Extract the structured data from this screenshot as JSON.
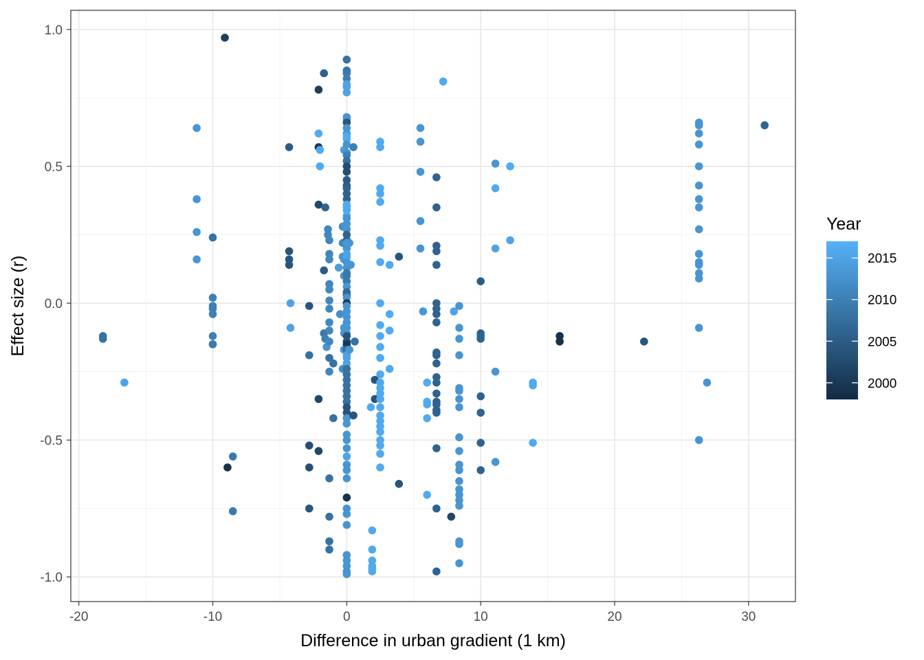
{
  "chart_data": {
    "type": "scatter",
    "xlabel": "Difference in urban gradient (1 km)",
    "ylabel": "Effect size (r)",
    "xlim": [
      -20.6,
      33.5
    ],
    "ylim": [
      -1.09,
      1.07
    ],
    "x_ticks": [
      -20,
      -10,
      0,
      10,
      20,
      30
    ],
    "y_ticks": [
      -1.0,
      -0.5,
      0.0,
      0.5,
      1.0
    ],
    "x_tick_labels": [
      "-20",
      "-10",
      "0",
      "10",
      "20",
      "30"
    ],
    "y_tick_labels": [
      "-1.0",
      "-0.5",
      "0.0",
      "0.5",
      "1.0"
    ],
    "grid": true,
    "legend": {
      "title": "Year",
      "placement": "right",
      "ticks": [
        2015,
        2010,
        2005,
        2000
      ],
      "tick_labels": [
        "2015",
        "2010",
        "2005",
        "2000"
      ],
      "range": [
        1998,
        2017
      ],
      "color_low": "#132b43",
      "color_high": "#56b1f7"
    },
    "points": [
      [
        -9.1,
        0.97,
        2001
      ],
      [
        -18.2,
        -0.12,
        2008
      ],
      [
        -18.2,
        -0.13,
        2008
      ],
      [
        -16.6,
        -0.29,
        2015
      ],
      [
        -11.2,
        0.64,
        2013
      ],
      [
        -11.2,
        0.38,
        2013
      ],
      [
        -11.2,
        0.26,
        2013
      ],
      [
        -11.2,
        0.16,
        2013
      ],
      [
        -10.0,
        0.24,
        2008
      ],
      [
        -10.0,
        0.02,
        2010
      ],
      [
        -10.0,
        -0.01,
        2010
      ],
      [
        -10.0,
        -0.02,
        2010
      ],
      [
        -10.0,
        -0.04,
        2010
      ],
      [
        -10.0,
        -0.12,
        2010
      ],
      [
        -10.0,
        -0.15,
        2010
      ],
      [
        -10.0,
        -0.15,
        2009
      ],
      [
        -8.9,
        -0.6,
        1999
      ],
      [
        -8.5,
        -0.56,
        2009
      ],
      [
        -8.5,
        -0.76,
        2009
      ],
      [
        -4.3,
        0.57,
        2005
      ],
      [
        -4.3,
        0.19,
        2004
      ],
      [
        -4.3,
        0.16,
        2004
      ],
      [
        -4.3,
        0.14,
        2004
      ],
      [
        -4.2,
        0.0,
        2015
      ],
      [
        -4.2,
        -0.09,
        2015
      ],
      [
        -2.8,
        -0.01,
        2004
      ],
      [
        -2.8,
        -0.19,
        2008
      ],
      [
        -2.8,
        -0.52,
        2003
      ],
      [
        -2.8,
        -0.6,
        2003
      ],
      [
        -2.8,
        -0.75,
        2004
      ],
      [
        -2.1,
        0.78,
        2001
      ],
      [
        -2.1,
        0.57,
        2000
      ],
      [
        -2.1,
        0.62,
        2016
      ],
      [
        -2.0,
        0.56,
        2016
      ],
      [
        -2.0,
        0.5,
        2016
      ],
      [
        -2.1,
        0.36,
        2002
      ],
      [
        -2.1,
        -0.35,
        2002
      ],
      [
        -2.1,
        -0.54,
        2002
      ],
      [
        -1.7,
        0.84,
        2006
      ],
      [
        -1.6,
        0.35,
        2006
      ],
      [
        -1.7,
        0.12,
        2005
      ],
      [
        -1.7,
        -0.11,
        2009
      ],
      [
        -1.6,
        -0.13,
        2010
      ],
      [
        -1.5,
        -0.16,
        2013
      ],
      [
        -1.4,
        0.27,
        2011
      ],
      [
        -1.4,
        0.25,
        2011
      ],
      [
        -1.3,
        0.23,
        2011
      ],
      [
        -1.3,
        0.18,
        2011
      ],
      [
        -1.3,
        0.16,
        2011
      ],
      [
        -1.3,
        0.07,
        2011
      ],
      [
        -1.3,
        0.05,
        2011
      ],
      [
        -1.3,
        0.01,
        2011
      ],
      [
        -1.3,
        -0.02,
        2011
      ],
      [
        -1.3,
        -0.07,
        2011
      ],
      [
        -1.3,
        -0.1,
        2011
      ],
      [
        -1.3,
        -0.14,
        2011
      ],
      [
        -1.3,
        -0.2,
        2008
      ],
      [
        -1.3,
        -0.25,
        2011
      ],
      [
        -1.3,
        -0.64,
        2008
      ],
      [
        -1.3,
        -0.78,
        2008
      ],
      [
        -1.3,
        -0.87,
        2008
      ],
      [
        -1.3,
        -0.9,
        2008
      ],
      [
        -1.0,
        -0.42,
        2008
      ],
      [
        -1.0,
        -0.22,
        2008
      ],
      [
        -0.6,
        0.13,
        2014
      ],
      [
        -0.5,
        -0.04,
        2012
      ],
      [
        -0.3,
        0.28,
        2012
      ],
      [
        -0.3,
        0.22,
        2011
      ],
      [
        -0.3,
        0.17,
        2013
      ],
      [
        -0.2,
        0.16,
        2013
      ],
      [
        -0.2,
        0.1,
        2013
      ],
      [
        -0.2,
        0.56,
        2014
      ],
      [
        -0.2,
        -0.09,
        2013
      ],
      [
        -0.2,
        -0.11,
        2013
      ],
      [
        -0.2,
        -0.17,
        2013
      ],
      [
        -0.3,
        -0.24,
        2012
      ],
      [
        0,
        0.89,
        2008
      ],
      [
        0,
        0.85,
        2008
      ],
      [
        0,
        0.84,
        2009
      ],
      [
        0,
        0.82,
        2010
      ],
      [
        0,
        0.8,
        2015
      ],
      [
        0,
        0.79,
        2015
      ],
      [
        0,
        0.77,
        2015
      ],
      [
        0,
        0.68,
        2013
      ],
      [
        0,
        0.67,
        2013
      ],
      [
        0,
        0.66,
        2004
      ],
      [
        0,
        0.64,
        2013
      ],
      [
        0,
        0.62,
        2013
      ],
      [
        0,
        0.61,
        2016
      ],
      [
        0,
        0.6,
        2016
      ],
      [
        0,
        0.58,
        2013
      ],
      [
        0,
        0.55,
        2013
      ],
      [
        0,
        0.54,
        2010
      ],
      [
        0,
        0.52,
        2008
      ],
      [
        0,
        0.5,
        2003
      ],
      [
        0,
        0.48,
        2003
      ],
      [
        0,
        0.45,
        2005
      ],
      [
        0,
        0.43,
        2005
      ],
      [
        0,
        0.42,
        2006
      ],
      [
        0,
        0.4,
        2006
      ],
      [
        0,
        0.38,
        2006
      ],
      [
        0,
        0.36,
        2016
      ],
      [
        0,
        0.35,
        2016
      ],
      [
        0,
        0.34,
        2016
      ],
      [
        0,
        0.32,
        2016
      ],
      [
        0,
        0.31,
        2013
      ],
      [
        0,
        0.29,
        2013
      ],
      [
        0,
        0.27,
        2013
      ],
      [
        0,
        0.25,
        2006
      ],
      [
        0,
        0.23,
        2006
      ],
      [
        0,
        0.22,
        2013
      ],
      [
        0,
        0.2,
        2013
      ],
      [
        0,
        0.18,
        2015
      ],
      [
        0,
        0.17,
        2015
      ],
      [
        0,
        0.15,
        2013
      ],
      [
        0,
        0.13,
        2013
      ],
      [
        0,
        0.11,
        2009
      ],
      [
        0,
        0.1,
        2009
      ],
      [
        0,
        0.08,
        2009
      ],
      [
        0,
        0.06,
        2013
      ],
      [
        0,
        0.04,
        2007
      ],
      [
        0,
        0.03,
        2007
      ],
      [
        0,
        0.02,
        2013
      ],
      [
        0,
        0.0,
        2000
      ],
      [
        0,
        -0.01,
        2013
      ],
      [
        0,
        -0.03,
        2013
      ],
      [
        0,
        -0.05,
        2013
      ],
      [
        0,
        -0.07,
        2013
      ],
      [
        0,
        -0.09,
        2013
      ],
      [
        0,
        -0.11,
        2013
      ],
      [
        0,
        -0.12,
        2004
      ],
      [
        0,
        -0.14,
        2004
      ],
      [
        0,
        -0.15,
        2000
      ],
      [
        0,
        -0.17,
        2008
      ],
      [
        0,
        -0.19,
        2015
      ],
      [
        0,
        -0.2,
        2015
      ],
      [
        0,
        -0.22,
        2015
      ],
      [
        0,
        -0.24,
        2008
      ],
      [
        0,
        -0.26,
        2008
      ],
      [
        0,
        -0.28,
        2008
      ],
      [
        0,
        -0.3,
        2008
      ],
      [
        0,
        -0.32,
        2008
      ],
      [
        0,
        -0.34,
        2008
      ],
      [
        0,
        -0.36,
        2008
      ],
      [
        0,
        -0.38,
        2004
      ],
      [
        0,
        -0.4,
        2004
      ],
      [
        0,
        -0.42,
        2013
      ],
      [
        0,
        -0.44,
        2013
      ],
      [
        0,
        -0.48,
        2013
      ],
      [
        0,
        -0.5,
        2013
      ],
      [
        0,
        -0.53,
        2013
      ],
      [
        0,
        -0.56,
        2015
      ],
      [
        0,
        -0.59,
        2013
      ],
      [
        0,
        -0.61,
        2013
      ],
      [
        0,
        -0.64,
        2013
      ],
      [
        0,
        -0.71,
        1999
      ],
      [
        0,
        -0.75,
        2013
      ],
      [
        0,
        -0.77,
        2013
      ],
      [
        0,
        -0.81,
        2013
      ],
      [
        0,
        -0.92,
        2013
      ],
      [
        0,
        -0.94,
        2013
      ],
      [
        0,
        -0.96,
        2013
      ],
      [
        0,
        -0.98,
        2013
      ],
      [
        0,
        -0.99,
        2013
      ],
      [
        0.2,
        0.22,
        2013
      ],
      [
        0.2,
        -0.17,
        2013
      ],
      [
        0.3,
        0.14,
        2013
      ],
      [
        0.5,
        0.57,
        2010
      ],
      [
        0.6,
        -0.14,
        2008
      ],
      [
        0.5,
        -0.41,
        2004
      ],
      [
        1.8,
        -0.38,
        2016
      ],
      [
        1.9,
        -0.83,
        2016
      ],
      [
        1.9,
        -0.9,
        2016
      ],
      [
        1.9,
        -0.94,
        2016
      ],
      [
        1.9,
        -0.96,
        2016
      ],
      [
        1.9,
        -0.97,
        2016
      ],
      [
        1.9,
        -0.98,
        2016
      ],
      [
        2.1,
        -0.28,
        2004
      ],
      [
        2.1,
        -0.35,
        2004
      ],
      [
        2.5,
        0.59,
        2016
      ],
      [
        2.5,
        0.57,
        2016
      ],
      [
        2.5,
        0.42,
        2016
      ],
      [
        2.5,
        0.4,
        2016
      ],
      [
        2.5,
        0.37,
        2016
      ],
      [
        2.5,
        0.23,
        2016
      ],
      [
        2.5,
        0.21,
        2016
      ],
      [
        2.5,
        0.15,
        2016
      ],
      [
        2.5,
        0.0,
        2016
      ],
      [
        2.5,
        -0.08,
        2016
      ],
      [
        2.5,
        -0.12,
        2016
      ],
      [
        2.5,
        -0.16,
        2016
      ],
      [
        2.5,
        -0.2,
        2016
      ],
      [
        2.5,
        -0.26,
        2016
      ],
      [
        2.5,
        -0.29,
        2016
      ],
      [
        2.5,
        -0.31,
        2016
      ],
      [
        2.5,
        -0.33,
        2016
      ],
      [
        2.5,
        -0.35,
        2016
      ],
      [
        2.5,
        -0.38,
        2016
      ],
      [
        2.5,
        -0.41,
        2016
      ],
      [
        2.5,
        -0.43,
        2016
      ],
      [
        2.5,
        -0.45,
        2016
      ],
      [
        2.5,
        -0.47,
        2016
      ],
      [
        2.5,
        -0.5,
        2016
      ],
      [
        2.5,
        -0.52,
        2016
      ],
      [
        2.5,
        -0.55,
        2016
      ],
      [
        2.5,
        -0.6,
        2016
      ],
      [
        3.2,
        0.14,
        2016
      ],
      [
        3.2,
        -0.04,
        2016
      ],
      [
        3.2,
        -0.1,
        2016
      ],
      [
        3.2,
        -0.24,
        2016
      ],
      [
        3.9,
        0.17,
        2004
      ],
      [
        3.9,
        -0.66,
        2004
      ],
      [
        5.5,
        0.64,
        2013
      ],
      [
        5.5,
        0.59,
        2013
      ],
      [
        5.5,
        0.48,
        2013
      ],
      [
        5.5,
        0.3,
        2013
      ],
      [
        5.5,
        0.2,
        2013
      ],
      [
        5.7,
        -0.03,
        2013
      ],
      [
        6.0,
        -0.29,
        2016
      ],
      [
        6.0,
        -0.36,
        2016
      ],
      [
        6.0,
        -0.37,
        2016
      ],
      [
        6.0,
        -0.42,
        2016
      ],
      [
        6.0,
        -0.7,
        2016
      ],
      [
        6.7,
        0.46,
        2006
      ],
      [
        6.7,
        0.35,
        2006
      ],
      [
        6.7,
        0.21,
        2006
      ],
      [
        6.7,
        0.19,
        2006
      ],
      [
        6.7,
        0.14,
        2006
      ],
      [
        6.7,
        0.0,
        2006
      ],
      [
        6.7,
        -0.02,
        2006
      ],
      [
        6.7,
        -0.04,
        2006
      ],
      [
        6.7,
        -0.07,
        2006
      ],
      [
        6.7,
        -0.18,
        2006
      ],
      [
        6.7,
        -0.19,
        2006
      ],
      [
        6.7,
        -0.22,
        2006
      ],
      [
        6.7,
        -0.27,
        2006
      ],
      [
        6.7,
        -0.29,
        2006
      ],
      [
        6.7,
        -0.33,
        2006
      ],
      [
        6.7,
        -0.36,
        2006
      ],
      [
        6.7,
        -0.37,
        2006
      ],
      [
        6.7,
        -0.39,
        2006
      ],
      [
        6.7,
        -0.4,
        2006
      ],
      [
        6.7,
        -0.53,
        2006
      ],
      [
        6.7,
        -0.75,
        2006
      ],
      [
        6.7,
        -0.98,
        2006
      ],
      [
        7.2,
        0.81,
        2016
      ],
      [
        7.8,
        -0.78,
        2002
      ],
      [
        8.0,
        -0.03,
        2015
      ],
      [
        8.4,
        -0.01,
        2013
      ],
      [
        8.4,
        -0.09,
        2013
      ],
      [
        8.4,
        -0.13,
        2013
      ],
      [
        8.4,
        -0.19,
        2013
      ],
      [
        8.4,
        -0.31,
        2013
      ],
      [
        8.4,
        -0.32,
        2013
      ],
      [
        8.4,
        -0.35,
        2013
      ],
      [
        8.4,
        -0.38,
        2013
      ],
      [
        8.4,
        -0.49,
        2013
      ],
      [
        8.4,
        -0.54,
        2013
      ],
      [
        8.4,
        -0.59,
        2013
      ],
      [
        8.4,
        -0.61,
        2013
      ],
      [
        8.4,
        -0.65,
        2013
      ],
      [
        8.4,
        -0.68,
        2013
      ],
      [
        8.4,
        -0.7,
        2013
      ],
      [
        8.4,
        -0.72,
        2013
      ],
      [
        8.4,
        -0.74,
        2013
      ],
      [
        8.4,
        -0.87,
        2013
      ],
      [
        8.4,
        -0.88,
        2013
      ],
      [
        8.4,
        -0.95,
        2013
      ],
      [
        10.0,
        0.08,
        2005
      ],
      [
        10.0,
        -0.11,
        2006
      ],
      [
        10.0,
        -0.12,
        2006
      ],
      [
        10.0,
        -0.13,
        2006
      ],
      [
        10.0,
        -0.34,
        2006
      ],
      [
        10.0,
        -0.4,
        2006
      ],
      [
        10.0,
        -0.51,
        2006
      ],
      [
        10.0,
        -0.61,
        2006
      ],
      [
        11.1,
        0.51,
        2013
      ],
      [
        11.1,
        0.42,
        2016
      ],
      [
        11.1,
        0.2,
        2015
      ],
      [
        11.1,
        -0.25,
        2013
      ],
      [
        11.1,
        -0.58,
        2013
      ],
      [
        12.2,
        0.5,
        2016
      ],
      [
        12.2,
        0.23,
        2015
      ],
      [
        13.9,
        -0.29,
        2016
      ],
      [
        13.9,
        -0.3,
        2016
      ],
      [
        13.9,
        -0.51,
        2016
      ],
      [
        15.9,
        -0.12,
        1999
      ],
      [
        15.9,
        -0.14,
        1999
      ],
      [
        22.2,
        -0.14,
        2004
      ],
      [
        26.3,
        0.66,
        2013
      ],
      [
        26.3,
        0.65,
        2013
      ],
      [
        26.3,
        0.62,
        2013
      ],
      [
        26.3,
        0.58,
        2013
      ],
      [
        26.3,
        0.5,
        2013
      ],
      [
        26.3,
        0.43,
        2013
      ],
      [
        26.3,
        0.38,
        2013
      ],
      [
        26.3,
        0.35,
        2013
      ],
      [
        26.3,
        0.27,
        2013
      ],
      [
        26.3,
        0.18,
        2013
      ],
      [
        26.3,
        0.15,
        2013
      ],
      [
        26.3,
        0.14,
        2013
      ],
      [
        26.3,
        0.11,
        2013
      ],
      [
        26.3,
        0.09,
        2013
      ],
      [
        26.3,
        -0.09,
        2013
      ],
      [
        26.3,
        -0.5,
        2013
      ],
      [
        26.9,
        -0.29,
        2013
      ],
      [
        31.2,
        0.65,
        2006
      ]
    ]
  }
}
